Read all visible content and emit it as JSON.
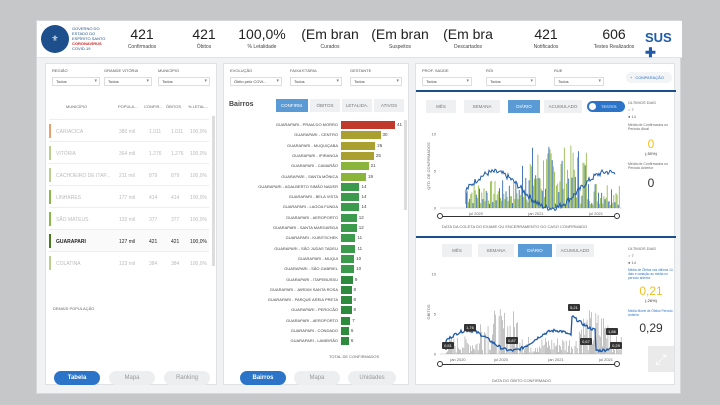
{
  "header": {
    "logo_icon": "coat-of-arms-icon",
    "gov_line1": "GOVERNO DO ESTADO DO ESPÍRITO SANTO",
    "gov_line2": "CORONAVÍRUS",
    "gov_line3": "COVID-19",
    "kpis": [
      {
        "value": "421",
        "label": "Confirmados"
      },
      {
        "value": "421",
        "label": "Óbitos"
      },
      {
        "value": "100,0%",
        "label": "% Letalidade"
      },
      {
        "value": "(Em bran",
        "label": "Curados"
      },
      {
        "value": "(Em bran",
        "label": "Suspeitos"
      },
      {
        "value": "(Em bra",
        "label": "Descartados"
      },
      {
        "value": "421",
        "label": "Notificados"
      },
      {
        "value": "606",
        "label": "Testes Realizados"
      }
    ],
    "sus_label": "SUS"
  },
  "left_panel": {
    "filters": [
      {
        "label": "REGIÃO",
        "value": "Todos"
      },
      {
        "label": "GRANDE VITÓRIA",
        "value": "Todos"
      },
      {
        "label": "MUNICÍPIO",
        "value": "Todos"
      }
    ],
    "columns": [
      "MUNICÍPIO",
      "POPULA...",
      "CONFIR...",
      "ÓBITOS",
      "% LETAL..."
    ],
    "rows": [
      {
        "name": "CARIACICA",
        "pop": "380 mil",
        "conf": "1.011",
        "obit": "1.011",
        "let": "100,0%",
        "accent": "#e8a070",
        "active": false
      },
      {
        "name": "VITÓRIA",
        "pop": "364 mil",
        "conf": "1.276",
        "obit": "1.276",
        "let": "100,0%",
        "accent": "#b8d08c",
        "active": false
      },
      {
        "name": "CACHOEIRO DE ITAP...",
        "pop": "211 mil",
        "conf": "879",
        "obit": "879",
        "let": "100,0%",
        "accent": "#b8d08c",
        "active": false
      },
      {
        "name": "LINHARES",
        "pop": "177 mil",
        "conf": "414",
        "obit": "414",
        "let": "100,0%",
        "accent": "#88b848",
        "active": false
      },
      {
        "name": "SÃO MATEUS",
        "pop": "132 mil",
        "conf": "377",
        "obit": "377",
        "let": "100,0%",
        "accent": "#88b848",
        "active": false
      },
      {
        "name": "GUARAPARI",
        "pop": "127 mil",
        "conf": "421",
        "obit": "421",
        "let": "100,0%",
        "accent": "#4a7a20",
        "active": true
      },
      {
        "name": "COLATINA",
        "pop": "123 mil",
        "conf": "384",
        "obit": "384",
        "let": "100,0%",
        "accent": "#b8d08c",
        "active": false
      }
    ],
    "footer": "DEMAIS POPULAÇÃO",
    "tabs": [
      "Tabela",
      "Mapa",
      "Ranking"
    ]
  },
  "mid_panel": {
    "filters": [
      {
        "label": "EVOLUÇÃO",
        "value": "Óbito pelo COVI..."
      },
      {
        "label": "FAIXA ETÁRIA",
        "value": "Todos"
      },
      {
        "label": "GESTANTE",
        "value": "Todos"
      }
    ],
    "title": "Bairros",
    "tabs": [
      "CONFIRM.",
      "ÓBITOS",
      "LETALIDA.",
      "ATIVOS"
    ],
    "bars": [
      {
        "name": "GUARAPARI - PRAIA DO MORRO",
        "value": 41,
        "color": "#c0392b"
      },
      {
        "name": "GUARAPARI - CENTRO",
        "value": 30,
        "color": "#a9a030"
      },
      {
        "name": "GUARAPARI - MUQUIÇABA",
        "value": 26,
        "color": "#a9a030"
      },
      {
        "name": "GUARAPARI - IPIRANGA",
        "value": 25,
        "color": "#a9a030"
      },
      {
        "name": "GUARAPARI - CAMARÃO",
        "value": 21,
        "color": "#8ab43c"
      },
      {
        "name": "GUARAPARI - SANTA MÔNICA",
        "value": 19,
        "color": "#8ab43c"
      },
      {
        "name": "GUARAPARI - ADALBERTO SIMÃO NADER",
        "value": 14,
        "color": "#3c9a4c"
      },
      {
        "name": "GUARAPARI - BELA VISTA",
        "value": 14,
        "color": "#3c9a4c"
      },
      {
        "name": "GUARAPARI - LAGOA FUNDA",
        "value": 14,
        "color": "#3c9a4c"
      },
      {
        "name": "GUARAPARI - AEROPORTO",
        "value": 12,
        "color": "#3c9a4c"
      },
      {
        "name": "GUARAPARI - SANTA MARGARIDA",
        "value": 12,
        "color": "#3c9a4c"
      },
      {
        "name": "GUARAPARI - KUBITSCHEK",
        "value": 11,
        "color": "#3c9a4c"
      },
      {
        "name": "GUARAPARI - SÃO JUDAS TADEU",
        "value": 11,
        "color": "#3c9a4c"
      },
      {
        "name": "GUARAPARI - MUQUI",
        "value": 10,
        "color": "#3c9a4c"
      },
      {
        "name": "GUARAPARI - SÃO GABRIEL",
        "value": 10,
        "color": "#3c9a4c"
      },
      {
        "name": "GUARAPARI - ITAPEBUSSU",
        "value": 9,
        "color": "#2e8b3e"
      },
      {
        "name": "GUARAPARI - JARDIM SANTA ROSA",
        "value": 8,
        "color": "#2e8b3e"
      },
      {
        "name": "GUARAPARI - PARQUE AREIA PRETA",
        "value": 8,
        "color": "#2e8b3e"
      },
      {
        "name": "GUARAPARI - PEROCÃO",
        "value": 8,
        "color": "#2e8b3e"
      },
      {
        "name": "GUARAPARI - AEROPORTO",
        "value": 7,
        "color": "#2e8b3e"
      },
      {
        "name": "GUARAPARI - CONDADO",
        "value": 6,
        "color": "#2e8b3e"
      },
      {
        "name": "GUARAPARI - LAMEIRÃO",
        "value": 6,
        "color": "#2e8b3e"
      }
    ],
    "total_label": "TOTAL DE CONFIRMADOS",
    "bottom_tabs": [
      "Bairros",
      "Mapa",
      "Unidades"
    ]
  },
  "right_panel": {
    "filters": [
      {
        "label": "PROF. SAÚDE",
        "value": "Todos"
      },
      {
        "label": "RÓI",
        "value": "Todos"
      },
      {
        "label": "RUE",
        "value": "Todos"
      }
    ],
    "compare_label": "COMPARAÇÃO",
    "top_chart": {
      "tabs": [
        "MÊS",
        "SEMANA",
        "DIÁRIO",
        "ACUMULADO"
      ],
      "toggle_label": "TESTES",
      "ylabel": "QTD. DE CONFIRMADOS",
      "xticks": [
        "jul 2020",
        "jan 2021",
        "jul 2021"
      ],
      "xlabel": "DATA DA COLETA DO EXAME OU ENCERRAMENTO DO CASO CONFIRMADO",
      "side": {
        "title": "ÚLTIMOS DIAS",
        "opt1": "7",
        "opt2": "14",
        "m1": "Média de Confirmados no Período Atual",
        "v1": "0",
        "p1": "(-50%)",
        "m2": "Média de Confirmados no Período Anterior",
        "v2": "0"
      }
    },
    "bottom_chart": {
      "tabs": [
        "MÊS",
        "SEMANA",
        "DIÁRIO",
        "ACUMULADO"
      ],
      "ylabel": "ÓBITOS",
      "xticks": [
        "jan 2020",
        "jul 2020",
        "jan 2021",
        "jul 2021"
      ],
      "xlabel": "DATA DO ÓBITO CONFIRMADO",
      "labels": [
        "0,51",
        "1,76",
        "0,87",
        "5,21",
        "0,67",
        "1,86",
        "0,29"
      ],
      "side": {
        "title": "ÚLTIMOS DIAS",
        "opt1": "7",
        "opt2": "14",
        "m1": "Média de Óbitos nos últimos 14 dias e variação ao média no período anterior",
        "v1": "0,21",
        "p1": "(-26%)",
        "m2": "Média Móvel de Óbitos Período Anterior",
        "v2": "0,29"
      }
    }
  }
}
